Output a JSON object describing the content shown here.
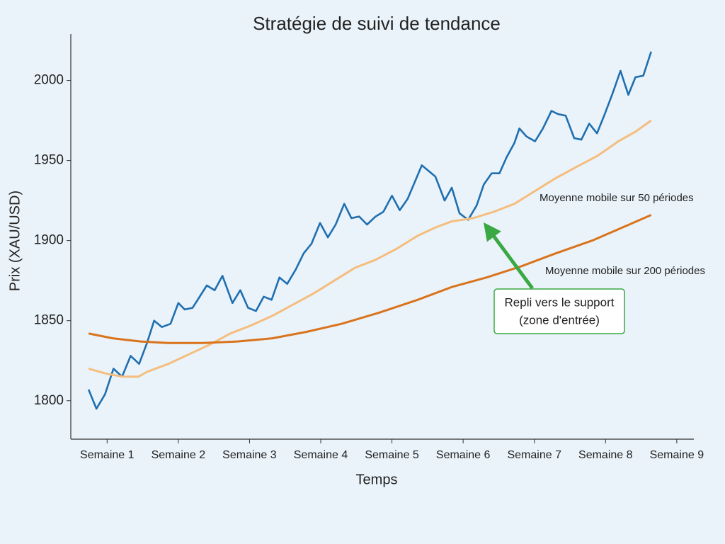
{
  "chart_data": {
    "type": "line",
    "title": "Stratégie de suivi de tendance",
    "xlabel": "Temps",
    "ylabel": "Prix (XAU/USD)",
    "xlim": [
      0.49,
      9.24
    ],
    "ylim": [
      1776,
      2029
    ],
    "xticks": [
      {
        "value": 1,
        "label": "Semaine 1"
      },
      {
        "value": 2,
        "label": "Semaine 2"
      },
      {
        "value": 3,
        "label": "Semaine 3"
      },
      {
        "value": 4,
        "label": "Semaine 4"
      },
      {
        "value": 5,
        "label": "Semaine 5"
      },
      {
        "value": 6,
        "label": "Semaine 6"
      },
      {
        "value": 7,
        "label": "Semaine 7"
      },
      {
        "value": 8,
        "label": "Semaine 8"
      },
      {
        "value": 9,
        "label": "Semaine 9"
      }
    ],
    "yticks": [
      1800,
      1850,
      1900,
      1950,
      2000
    ],
    "grid": false,
    "series": [
      {
        "color": "#1f6fb0",
        "x": [
          0.74,
          0.85,
          0.97,
          1.09,
          1.21,
          1.33,
          1.45,
          1.56,
          1.66,
          1.77,
          1.89,
          2.0,
          2.09,
          2.2,
          2.4,
          2.51,
          2.62,
          2.76,
          2.87,
          2.98,
          3.09,
          3.2,
          3.31,
          3.42,
          3.53,
          3.65,
          3.76,
          3.87,
          3.99,
          4.1,
          4.21,
          4.33,
          4.43,
          4.54,
          4.65,
          4.77,
          4.88,
          5.0,
          5.11,
          5.22,
          5.42,
          5.61,
          5.74,
          5.84,
          5.95,
          6.07,
          6.19,
          6.29,
          6.4,
          6.51,
          6.61,
          6.72,
          6.79,
          6.89,
          7.01,
          7.12,
          7.24,
          7.33,
          7.44,
          7.56,
          7.66,
          7.77,
          7.88,
          7.98,
          8.1,
          8.21,
          8.32,
          8.42,
          8.53,
          8.64
        ],
        "values": [
          1807,
          1795,
          1804,
          1820,
          1815,
          1828,
          1823,
          1836,
          1850,
          1846,
          1848,
          1861,
          1857,
          1858,
          1872,
          1869,
          1878,
          1861,
          1869,
          1858,
          1856,
          1865,
          1863,
          1877,
          1873,
          1882,
          1892,
          1898,
          1911,
          1902,
          1910,
          1923,
          1914,
          1915,
          1910,
          1915,
          1918,
          1928,
          1919,
          1926,
          1947,
          1940,
          1925,
          1933,
          1917,
          1913,
          1922,
          1935,
          1942,
          1942,
          1952,
          1961,
          1970,
          1965,
          1962,
          1970,
          1981,
          1979,
          1978,
          1964,
          1963,
          1973,
          1967,
          1978,
          1992,
          2006,
          1991,
          2002,
          2003,
          2018
        ]
      },
      {
        "name": "Moyenne mobile sur 50 périodes",
        "color": "#f5bd7e",
        "x": [
          0.74,
          0.98,
          1.22,
          1.44,
          1.56,
          1.86,
          2.15,
          2.44,
          2.73,
          3.02,
          3.32,
          3.61,
          3.9,
          4.19,
          4.48,
          4.77,
          5.07,
          5.36,
          5.6,
          5.84,
          6.14,
          6.43,
          6.72,
          7.01,
          7.3,
          7.59,
          7.89,
          8.18,
          8.42,
          8.64
        ],
        "values": [
          1820,
          1817,
          1815,
          1815,
          1818,
          1823,
          1829,
          1835,
          1842,
          1847,
          1853,
          1860,
          1867,
          1875,
          1883,
          1888,
          1895,
          1903,
          1908,
          1912,
          1914,
          1918,
          1923,
          1931,
          1939,
          1946,
          1953,
          1962,
          1968,
          1975
        ]
      },
      {
        "name": "Moyenne mobile sur 200 périodes",
        "color": "#d9731c",
        "x": [
          0.74,
          1.08,
          1.47,
          1.86,
          2.34,
          2.83,
          3.32,
          3.8,
          4.29,
          4.82,
          5.36,
          5.84,
          6.33,
          6.82,
          7.3,
          7.81,
          8.28,
          8.64
        ],
        "values": [
          1842,
          1839,
          1837,
          1836,
          1836,
          1837,
          1839,
          1843,
          1848,
          1855,
          1863,
          1871,
          1877,
          1884,
          1892,
          1900,
          1909,
          1916
        ]
      }
    ],
    "annotation": {
      "lines": [
        "Repli vers le support",
        "(zone d'entrée)"
      ],
      "color": "#3aa843"
    }
  }
}
